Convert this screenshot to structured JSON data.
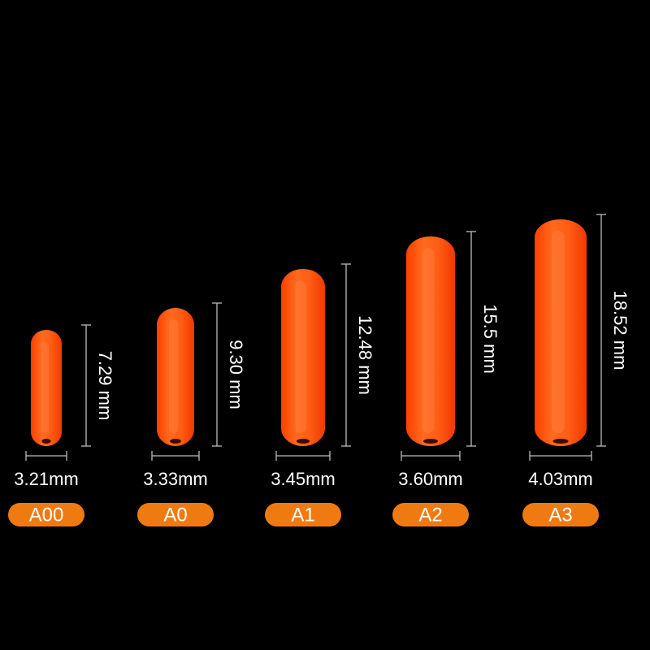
{
  "items": [
    {
      "width": "3.21mm",
      "height": "7.29 mm",
      "label": "A00"
    },
    {
      "width": "3.33mm",
      "height": "9.30 mm",
      "label": "A0"
    },
    {
      "width": "3.45mm",
      "height": "12.48 mm",
      "label": "A1"
    },
    {
      "width": "3.60mm",
      "height": "15.5 mm",
      "label": "A2"
    },
    {
      "width": "4.03mm",
      "height": "18.52 mm",
      "label": "A3"
    }
  ]
}
